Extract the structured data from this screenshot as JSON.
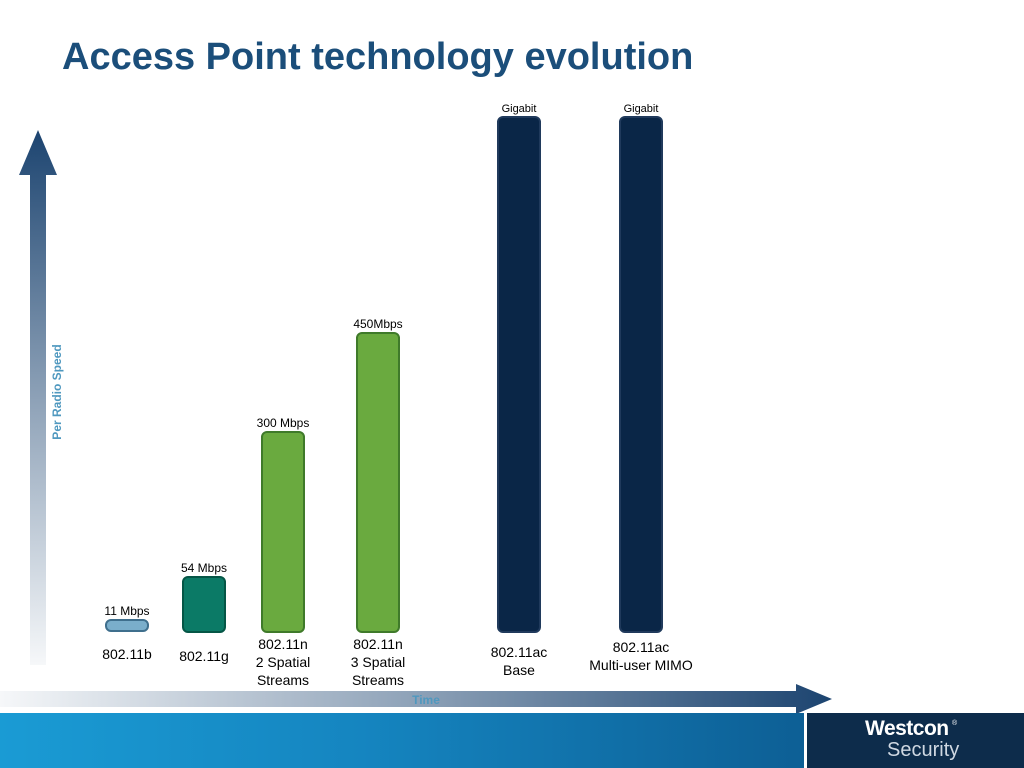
{
  "slide": {
    "title": "Access Point technology evolution"
  },
  "chart_data": {
    "type": "bar",
    "xlabel": "Time",
    "ylabel": "Per Radio Speed",
    "grid": false,
    "legend": "none",
    "categories": [
      "802.11b",
      "802.11g",
      "802.11n 2 Spatial Streams",
      "802.11n 3 Spatial Streams",
      "802.11ac Base",
      "802.11ac Multi-user MIMO"
    ],
    "category_lines": [
      [
        "802.11b"
      ],
      [
        "802.11g"
      ],
      [
        "802.11n",
        "2 Spatial",
        "Streams"
      ],
      [
        "802.11n",
        "3 Spatial",
        "Streams"
      ],
      [
        "802.11ac",
        "Base"
      ],
      [
        "802.11ac",
        "Multi-user MIMO"
      ]
    ],
    "values": [
      11,
      54,
      300,
      450,
      1300,
      1300
    ],
    "data_labels": [
      "11 Mbps",
      "54 Mbps",
      "300 Mbps",
      "450Mbps",
      "Gigabit",
      "Gigabit"
    ],
    "colors": [
      "#7aaecb",
      "#0b7a66",
      "#6aaa3f",
      "#6aaa3f",
      "#0a2647",
      "#0a2647"
    ],
    "border_colors": [
      "#3f6f8d",
      "#055646",
      "#3f7a2a",
      "#3f7a2a",
      "#203a5c",
      "#203a5c"
    ]
  },
  "footer": {
    "logo_line1": "Westcon",
    "logo_reg": "®",
    "logo_line2": "Security"
  }
}
